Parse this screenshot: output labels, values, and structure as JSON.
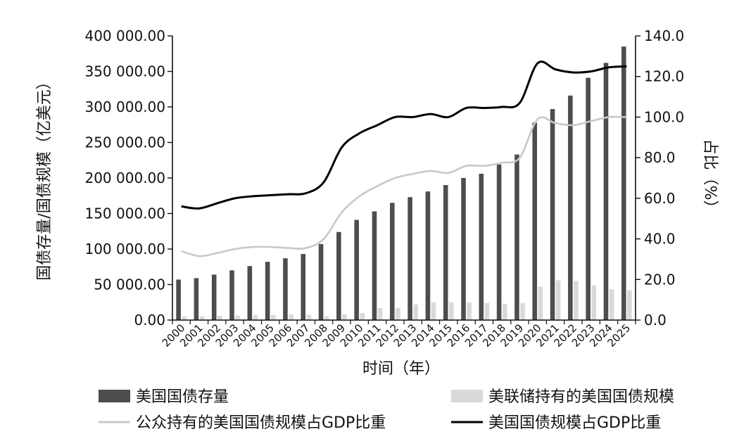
{
  "chart_data": {
    "type": "bar",
    "title": "",
    "xlabel": "时间（年）",
    "ylabel_left": "国债存量/国债规模（亿美元）",
    "ylabel_right": "占比（%）",
    "categories": [
      "2000",
      "2001",
      "2002",
      "2003",
      "2004",
      "2005",
      "2006",
      "2007",
      "2008",
      "2009",
      "2010",
      "2011",
      "2012",
      "2013",
      "2014",
      "2015",
      "2016",
      "2017",
      "2018",
      "2019",
      "2020",
      "2021",
      "2022",
      "2023",
      "2024",
      "2025"
    ],
    "ylim_left": [
      0,
      400000
    ],
    "ylim_right": [
      0,
      140
    ],
    "y_ticks_left": [
      "0.00",
      "50 000.00",
      "100 000.00",
      "150 000.00",
      "200 000.00",
      "250 000.00",
      "300 000.00",
      "350 000.00",
      "400 000.00"
    ],
    "y_ticks_right": [
      "0.0",
      "20.0",
      "40.0",
      "60.0",
      "80.0",
      "100.0",
      "120.0",
      "140.0"
    ],
    "grid": false,
    "legend_position": "bottom",
    "series": [
      {
        "name": "美国国债存量",
        "kind": "bar",
        "axis": "left",
        "color": "#4d4d4d",
        "values": [
          57000,
          59000,
          64000,
          70000,
          76000,
          82000,
          87000,
          93000,
          107000,
          124000,
          141000,
          153000,
          165000,
          173000,
          181000,
          190000,
          200000,
          206000,
          219000,
          233000,
          278000,
          297000,
          316000,
          341000,
          362000,
          385000
        ]
      },
      {
        "name": "美联储持有的美国国债规模",
        "kind": "bar",
        "axis": "left",
        "color": "#d9d9d9",
        "values": [
          5000,
          5000,
          6000,
          6500,
          7000,
          7500,
          8000,
          7500,
          5000,
          8000,
          10000,
          17000,
          17000,
          22000,
          25000,
          25000,
          25000,
          24000,
          23000,
          24000,
          47000,
          56000,
          55000,
          49000,
          43000,
          42000
        ]
      },
      {
        "name": "公众持有的美国国债规模占GDP比重",
        "kind": "line",
        "axis": "right",
        "color": "#c8c8c8",
        "values": [
          34,
          31.5,
          33,
          35,
          36,
          36,
          35.5,
          35.5,
          40,
          53,
          61,
          66,
          70,
          72,
          73.5,
          72.5,
          76,
          76,
          77.5,
          80,
          99,
          97,
          96,
          98,
          100,
          100
        ]
      },
      {
        "name": "美国国债规模占GDP比重",
        "kind": "line",
        "axis": "right",
        "color": "#000000",
        "values": [
          56,
          55,
          57.5,
          60,
          61,
          61.5,
          62,
          62.5,
          68,
          85,
          92,
          96,
          100,
          100,
          101.5,
          100,
          104.5,
          104.5,
          105,
          107,
          126.5,
          123.5,
          122,
          122.5,
          124.5,
          125
        ]
      }
    ]
  }
}
